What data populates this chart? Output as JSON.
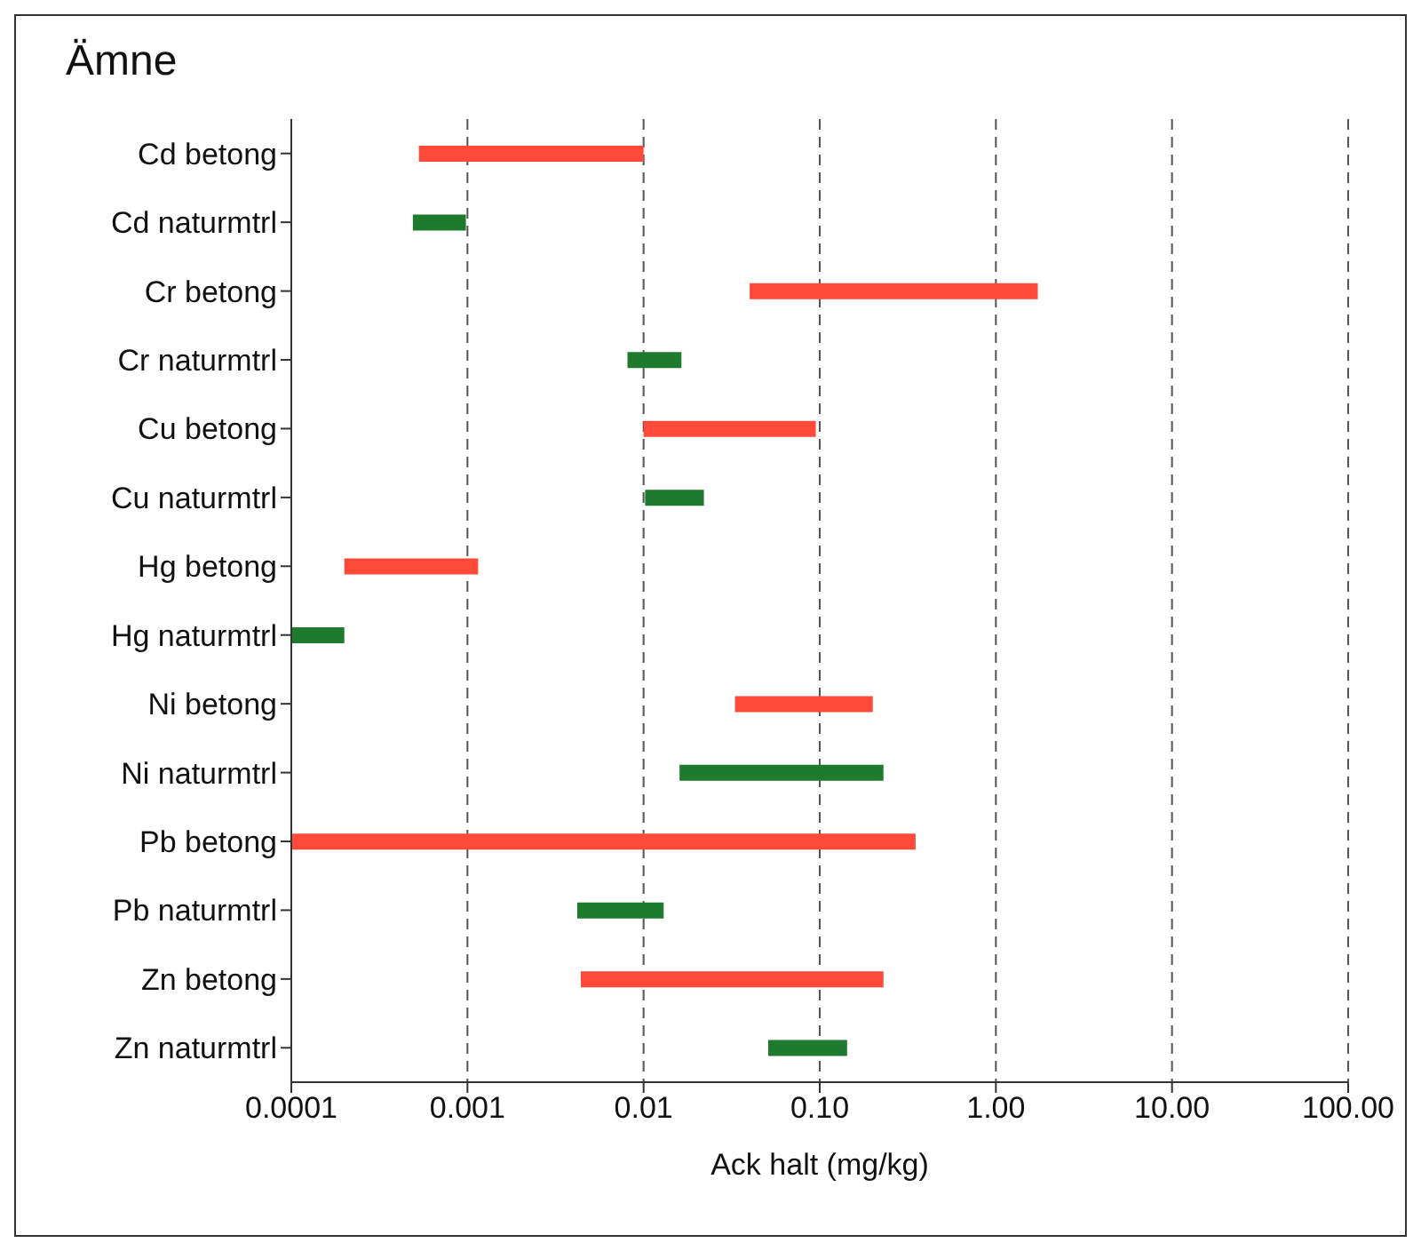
{
  "chart_data": {
    "type": "bar",
    "orientation": "horizontal",
    "log": "x",
    "ylabel": "Ämne",
    "xlabel": "Ack halt  (mg/kg)",
    "categories": [
      "Cd betong",
      "Cd naturmtrl",
      "Cr betong",
      "Cr naturmtrl",
      "Cu betong",
      "Cu naturmtrl",
      "Hg betong",
      "Hg naturmtrl",
      "Ni betong",
      "Ni naturmtrl",
      "Pb betong",
      "Pb naturmtrl",
      "Zn betong",
      "Zn naturmtrl"
    ],
    "base": [
      0.00053,
      0.00049,
      0.04,
      0.0081,
      0.01,
      0.0102,
      0.0002,
      0.0001,
      0.033,
      0.016,
      0.0001,
      0.0042,
      0.0044,
      0.051
    ],
    "values": [
      0.00947,
      0.00049,
      1.69,
      0.0083,
      0.085,
      0.0118,
      0.00095,
      0.0001,
      0.167,
      0.214,
      0.3499,
      0.0088,
      0.2256,
      0.092
    ],
    "colors": [
      "#ff4a3a",
      "#1e7b2e",
      "#ff4a3a",
      "#1e7b2e",
      "#ff4a3a",
      "#1e7b2e",
      "#ff4a3a",
      "#1e7b2e",
      "#ff4a3a",
      "#1e7b2e",
      "#ff4a3a",
      "#1e7b2e",
      "#ff4a3a",
      "#1e7b2e"
    ],
    "xlim": [
      0.0001,
      100
    ],
    "xticks": [
      0.0001,
      0.001,
      0.01,
      {
        "value": 0.1,
        "label": "0.10"
      },
      {
        "value": 1,
        "label": "1.00"
      },
      {
        "value": 10,
        "label": "10.00"
      },
      {
        "value": 100,
        "label": "100.00"
      }
    ],
    "grid": "x",
    "legend": false
  }
}
